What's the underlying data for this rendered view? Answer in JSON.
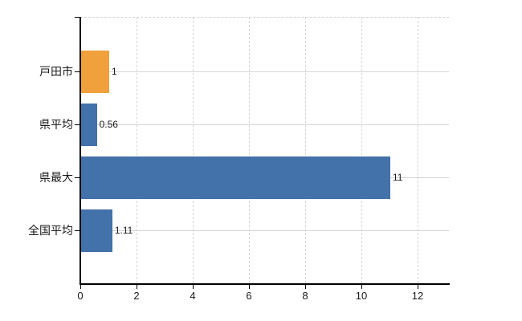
{
  "chart": {
    "background": "#ffffff",
    "axis_color": "#000000",
    "grid_color_horizontal": "#d3d3d3",
    "grid_color_vertical": "#d2d5d9",
    "text_color": "#1a1a1a",
    "highlight_bar_color": "#f0a13c",
    "default_bar_color": "#4371a9"
  },
  "chart_data": {
    "type": "bar",
    "orientation": "horizontal",
    "title": "",
    "xlabel": "",
    "ylabel": "",
    "categories": [
      "戸田市",
      "県平均",
      "県最大",
      "全国平均"
    ],
    "values": [
      1,
      0.56,
      11,
      1.11
    ],
    "value_labels": [
      "1",
      "0.56",
      "11",
      "1.11"
    ],
    "bar_colors": [
      "#f0a13c",
      "#4371a9",
      "#4371a9",
      "#4371a9"
    ],
    "xlim": [
      0,
      13.1
    ],
    "x_ticks": [
      0,
      2,
      4,
      6,
      8,
      10,
      12
    ],
    "x_tick_labels": [
      "0",
      "2",
      "4",
      "6",
      "8",
      "10",
      "12"
    ],
    "grid": true,
    "legend": false
  }
}
